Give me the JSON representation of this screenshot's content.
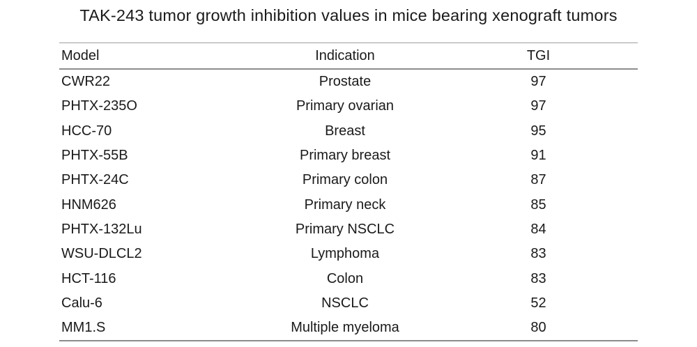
{
  "title": "TAK-243 tumor growth inhibition values in mice bearing xenograft tumors",
  "table": {
    "columns": [
      "Model",
      "Indication",
      "TGI"
    ],
    "field_order": [
      "model",
      "indication",
      "tgi"
    ],
    "rows": [
      {
        "model": "CWR22",
        "indication": "Prostate",
        "tgi": "97"
      },
      {
        "model": "PHTX-235O",
        "indication": "Primary ovarian",
        "tgi": "97"
      },
      {
        "model": "HCC-70",
        "indication": "Breast",
        "tgi": "95"
      },
      {
        "model": "PHTX-55B",
        "indication": "Primary breast",
        "tgi": "91"
      },
      {
        "model": "PHTX-24C",
        "indication": "Primary colon",
        "tgi": "87"
      },
      {
        "model": "HNM626",
        "indication": "Primary neck",
        "tgi": "85"
      },
      {
        "model": "PHTX-132Lu",
        "indication": "Primary NSCLC",
        "tgi": "84"
      },
      {
        "model": "WSU-DLCL2",
        "indication": "Lymphoma",
        "tgi": "83"
      },
      {
        "model": "HCT-116",
        "indication": "Colon",
        "tgi": "83"
      },
      {
        "model": "Calu-6",
        "indication": "NSCLC",
        "tgi": "52"
      },
      {
        "model": "MM1.S",
        "indication": "Multiple myeloma",
        "tgi": "80"
      }
    ]
  },
  "colors": {
    "background": "#ffffff",
    "text": "#1a1a1a",
    "rule": "#8c8c8c"
  }
}
